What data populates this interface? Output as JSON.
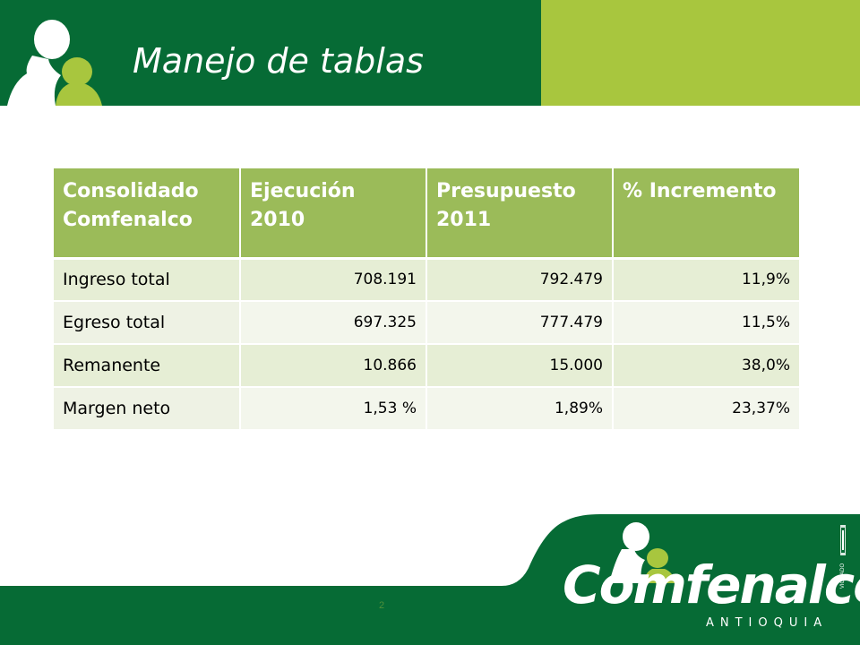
{
  "slide": {
    "title": "Manejo de tablas",
    "page_number": "2"
  },
  "table": {
    "headers": [
      "Consolidado Comfenalco",
      "Ejecución 2010",
      "Presupuesto 2011",
      "% Incremento"
    ],
    "rows": [
      {
        "label": "Ingreso total",
        "ejecucion": "708.191",
        "presupuesto": "792.479",
        "incremento": "11,9%"
      },
      {
        "label": "Egreso total",
        "ejecucion": "697.325",
        "presupuesto": "777.479",
        "incremento": "11,5%"
      },
      {
        "label": "Remanente",
        "ejecucion": "10.866",
        "presupuesto": "15.000",
        "incremento": "38,0%"
      },
      {
        "label": "Margen neto",
        "ejecucion": "1,53 %",
        "presupuesto": "1,89%",
        "incremento": "23,37%"
      }
    ]
  },
  "brand": {
    "name": "Comfenalco",
    "sub": "ANTIOQUIA",
    "vigilado": "VIGILADO"
  },
  "colors": {
    "dark_green": "#066b35",
    "lime": "#a8c63e",
    "header_green": "#9bbb59",
    "row_band": "#e6eed5"
  },
  "icons": [
    "people-logo-icon",
    "vigilado-seal-icon"
  ]
}
